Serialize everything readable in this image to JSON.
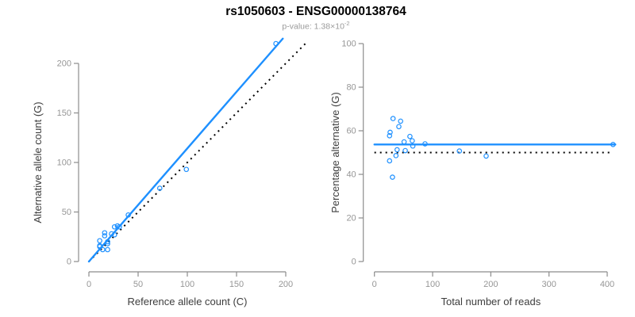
{
  "header": {
    "title": "rs1050603 - ENSG00000138764",
    "subtitle_prefix": "p-value: 1.38×10",
    "subtitle_exponent": "-2"
  },
  "colors": {
    "accent_blue": "#1e90ff",
    "line_black": "#000000",
    "axis_gray": "#8c8c8c",
    "tick_label_gray": "#969696",
    "axis_title_dark": "#3d3d3d",
    "subtitle_gray": "#9a9a9a"
  },
  "chart_data": [
    {
      "id": "allele-counts-scatter",
      "type": "scatter",
      "title": "",
      "xlabel": "Reference allele count (C)",
      "ylabel": "Alternative allele count (G)",
      "xticks": [
        0,
        50,
        100,
        150,
        200
      ],
      "yticks": [
        0,
        50,
        100,
        150,
        200
      ],
      "xlim": [
        0,
        222
      ],
      "ylim": [
        0,
        226
      ],
      "grid": false,
      "legend": null,
      "marker": "open-circle",
      "points": [
        [
          11,
          21
        ],
        [
          16,
          29
        ],
        [
          16,
          26
        ],
        [
          11,
          16
        ],
        [
          11,
          15
        ],
        [
          26,
          35
        ],
        [
          23,
          28
        ],
        [
          29,
          36
        ],
        [
          31,
          35
        ],
        [
          40,
          47
        ],
        [
          19,
          20
        ],
        [
          26,
          27
        ],
        [
          14,
          12
        ],
        [
          19,
          18
        ],
        [
          19,
          12
        ],
        [
          72,
          74
        ],
        [
          99,
          93
        ],
        [
          190,
          220
        ]
      ],
      "lines": [
        {
          "name": "identity-line",
          "style": "dotted",
          "color": "black",
          "x1": 0,
          "y1": 0,
          "x2": 221,
          "y2": 221
        },
        {
          "name": "fit-line",
          "style": "solid",
          "color": "accent",
          "x1": 0,
          "y1": 0,
          "x2": 197,
          "y2": 225
        }
      ]
    },
    {
      "id": "percentage-vs-reads-scatter",
      "type": "scatter",
      "title": "",
      "xlabel": "Total number of reads",
      "ylabel": "Percentage alternative (G)",
      "xticks": [
        0,
        100,
        200,
        300,
        400
      ],
      "yticks": [
        0,
        20,
        40,
        60,
        80,
        100
      ],
      "xlim": [
        0,
        416
      ],
      "ylim": [
        0,
        100
      ],
      "grid": false,
      "legend": null,
      "marker": "open-circle",
      "points": [
        [
          32,
          65.6
        ],
        [
          45,
          64.4
        ],
        [
          42,
          61.9
        ],
        [
          27,
          59.3
        ],
        [
          26,
          57.7
        ],
        [
          61,
          57.4
        ],
        [
          51,
          54.9
        ],
        [
          65,
          55.4
        ],
        [
          66,
          53.0
        ],
        [
          87,
          54.0
        ],
        [
          39,
          51.3
        ],
        [
          53,
          50.9
        ],
        [
          26,
          46.2
        ],
        [
          37,
          48.6
        ],
        [
          31,
          38.7
        ],
        [
          146,
          50.7
        ],
        [
          192,
          48.4
        ],
        [
          410,
          53.7
        ]
      ],
      "lines": [
        {
          "name": "expected-50pct-line",
          "style": "dotted",
          "color": "black",
          "x1": 0,
          "y1": 50,
          "x2": 405,
          "y2": 50
        },
        {
          "name": "mean-percentage-line",
          "style": "solid",
          "color": "accent",
          "x1": 0,
          "y1": 53.7,
          "x2": 414,
          "y2": 53.7
        }
      ]
    }
  ]
}
